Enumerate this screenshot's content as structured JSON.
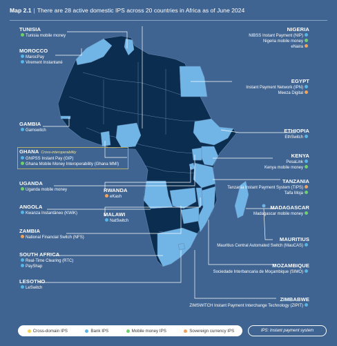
{
  "title": {
    "label": "Map 2.1",
    "text": "There are 28 active domestic IPS across 20 countries in Africa as of June 2024"
  },
  "colors": {
    "background": "#3f6491",
    "active_country": "#0b2d4f",
    "highlight_country": "#71b4e6",
    "bank": "#58b6e6",
    "mobile": "#6fcf6d",
    "sovereign": "#f0a35e",
    "cross": "#f3d155"
  },
  "countries": {
    "tunisia": {
      "name": "TUNISIA",
      "items": [
        {
          "text": "Tunisia mobile money",
          "type": "mobile"
        }
      ]
    },
    "morocco": {
      "name": "MOROCCO",
      "items": [
        {
          "text": "MarocPay",
          "type": "bank"
        },
        {
          "text": "Virement Instantané",
          "type": "bank"
        }
      ]
    },
    "gambia": {
      "name": "GAMBIA",
      "items": [
        {
          "text": "Gamswitch",
          "type": "bank"
        }
      ]
    },
    "ghana": {
      "name": "GHANA",
      "note": "Cross-interoperability",
      "items": [
        {
          "text": "GhIPSS Instant Pay (GIP)",
          "type": "bank"
        },
        {
          "text": "Ghana Mobile Money Interoperability (Ghana MMI)",
          "type": "mobile"
        }
      ]
    },
    "uganda": {
      "name": "UGANDA",
      "items": [
        {
          "text": "Uganda mobile money",
          "type": "mobile"
        }
      ]
    },
    "rwanda": {
      "name": "RWANDA",
      "items": [
        {
          "text": "eKash",
          "type": "sovereign"
        }
      ]
    },
    "malawi": {
      "name": "MALAWI",
      "items": [
        {
          "text": "NatSwitch",
          "type": "bank"
        }
      ]
    },
    "angola": {
      "name": "ANGOLA",
      "items": [
        {
          "text": "Kwanza Instantâneo (KWiK)",
          "type": "bank"
        }
      ]
    },
    "zambia": {
      "name": "ZAMBIA",
      "items": [
        {
          "text": "National Financial Switch (NFS)",
          "type": "sovereign"
        }
      ]
    },
    "south_africa": {
      "name": "SOUTH AFRICA",
      "items": [
        {
          "text": "Real-Time Clearing (RTC)",
          "type": "bank"
        },
        {
          "text": "PayShap",
          "type": "bank"
        }
      ]
    },
    "lesotho": {
      "name": "LESOTHO",
      "items": [
        {
          "text": "LeSwitch",
          "type": "bank"
        }
      ]
    },
    "nigeria": {
      "name": "NIGERIA",
      "items": [
        {
          "text": "NIBSS Instant Payment (NIP)",
          "type": "bank"
        },
        {
          "text": "Nigeria mobile money",
          "type": "mobile"
        },
        {
          "text": "eNaira",
          "type": "sovereign"
        }
      ]
    },
    "egypt": {
      "name": "EGYPT",
      "items": [
        {
          "text": "Instant Payment Network (IPN)",
          "type": "bank"
        },
        {
          "text": "Meeza Digital",
          "type": "sovereign"
        }
      ]
    },
    "ethiopia": {
      "name": "ETHIOPIA",
      "items": [
        {
          "text": "EthSwitch",
          "type": "bank"
        }
      ]
    },
    "kenya": {
      "name": "KENYA",
      "items": [
        {
          "text": "PesaLink",
          "type": "bank"
        },
        {
          "text": "Kenya mobile money",
          "type": "mobile"
        }
      ]
    },
    "tanzania": {
      "name": "TANZANIA",
      "items": [
        {
          "text": "Tanzania Instant Payment System (TIPS)",
          "type": "sovereign"
        },
        {
          "text": "Taifa Moja",
          "type": "mobile"
        }
      ]
    },
    "madagascar": {
      "name": "MADAGASCAR",
      "items": [
        {
          "text": "Madagascar mobile money",
          "type": "mobile"
        }
      ]
    },
    "mauritius": {
      "name": "MAURITIUS",
      "items": [
        {
          "text": "Mauritius Central Automated Switch (MauCAS)",
          "type": "bank"
        }
      ]
    },
    "mozambique": {
      "name": "MOZAMBIQUE",
      "items": [
        {
          "text": "Sociedade Interbancaria de Moçambique (SIMO)",
          "type": "bank"
        }
      ]
    },
    "zimbabwe": {
      "name": "ZIMBABWE",
      "items": [
        {
          "text": "ZIMSWITCH Instant Payment Interchange Technology (ZIPIT)",
          "type": "bank"
        }
      ]
    }
  },
  "legend": {
    "cross": "Cross-domain IPS",
    "bank": "Bank IPS",
    "mobile": "Mobile money IPS",
    "sovereign": "Sovereign currency IPS"
  },
  "footnote": "IPS: Instant payment system"
}
